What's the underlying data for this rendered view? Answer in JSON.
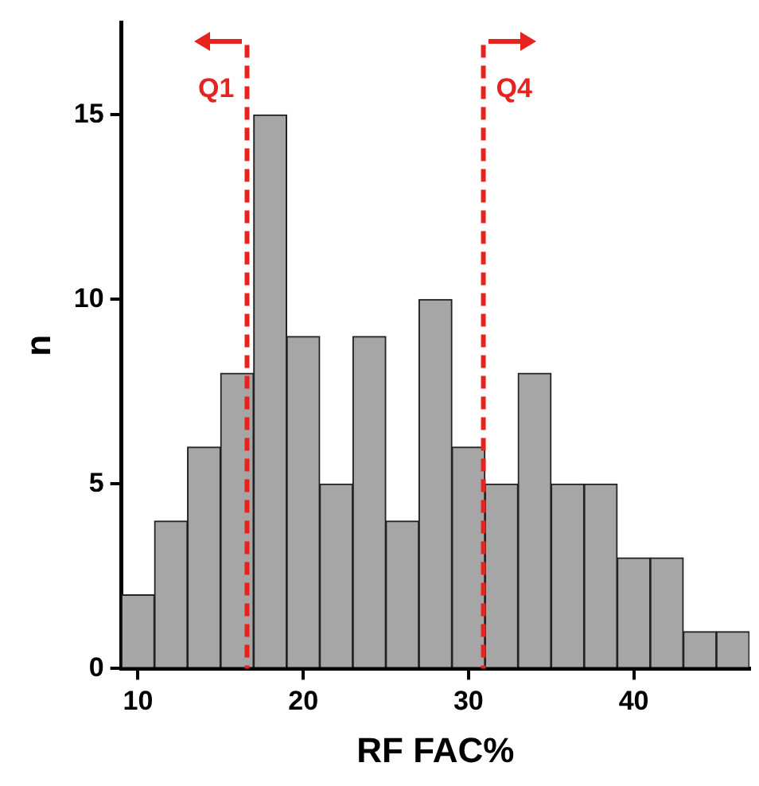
{
  "chart_data": {
    "type": "histogram",
    "xlabel": "RF FAC%",
    "ylabel": "n",
    "bins": [
      9,
      11,
      13,
      15,
      17,
      19,
      21,
      23,
      25,
      27,
      29,
      31,
      33,
      35,
      37,
      39,
      41,
      43,
      45,
      47
    ],
    "values": [
      2,
      4,
      6,
      8,
      15,
      9,
      5,
      9,
      4,
      10,
      6,
      5,
      8,
      5,
      5,
      3,
      3,
      1,
      1
    ],
    "color": "#a6a6a6",
    "xlim": [
      9,
      47
    ],
    "xticks": [
      10,
      20,
      30,
      40
    ],
    "ylim": [
      0,
      17.5
    ],
    "yticks": [
      0,
      5,
      10,
      15
    ],
    "grid": false,
    "legend": false,
    "ref_lines": [
      {
        "axis": "x",
        "value": 16.6,
        "label": "Q1",
        "color": "#e8231f",
        "line_style": "dashed"
      },
      {
        "axis": "x",
        "value": 30.9,
        "label": "Q4",
        "color": "#e8231f",
        "line_style": "dashed"
      }
    ]
  }
}
